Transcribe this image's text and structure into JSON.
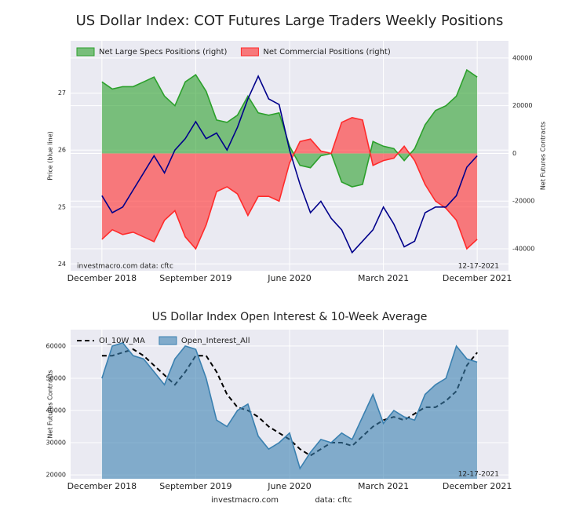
{
  "chart_data": [
    {
      "type": "line",
      "title": "US Dollar Index: COT Futures Large Traders Weekly Positions",
      "ylabel": "Price (blue line)",
      "y2label": "Net Futures Contracts",
      "x": [
        "2018-12",
        "2019-01",
        "2019-02",
        "2019-03",
        "2019-04",
        "2019-05",
        "2019-06",
        "2019-07",
        "2019-08",
        "2019-09",
        "2019-10",
        "2019-11",
        "2019-12",
        "2020-01",
        "2020-02",
        "2020-03",
        "2020-04",
        "2020-05",
        "2020-06",
        "2020-07",
        "2020-08",
        "2020-09",
        "2020-10",
        "2020-11",
        "2020-12",
        "2021-01",
        "2021-02",
        "2021-03",
        "2021-04",
        "2021-05",
        "2021-06",
        "2021-07",
        "2021-08",
        "2021-09",
        "2021-10",
        "2021-11",
        "2021-12"
      ],
      "xlim": [
        "2018-09",
        "2022-03"
      ],
      "xticks": [
        {
          "value": "2018-12",
          "label": "December 2018"
        },
        {
          "value": "2019-09",
          "label": "September 2019"
        },
        {
          "value": "2020-06",
          "label": "June 2020"
        },
        {
          "value": "2021-03",
          "label": "March 2021"
        },
        {
          "value": "2021-12",
          "label": "December 2021"
        }
      ],
      "ylim": [
        23.88,
        27.92
      ],
      "yticks": [
        24,
        25,
        26,
        27
      ],
      "y2lim": [
        -49200,
        47200
      ],
      "y2ticks": [
        -40000,
        -20000,
        0,
        20000,
        40000
      ],
      "grid": true,
      "legend": "upper left",
      "series": [
        {
          "name": "Net Large Specs Positions (right)",
          "color": "#2ca02c",
          "style": "area",
          "axis": "y2",
          "values": [
            30000,
            27000,
            28000,
            28000,
            30000,
            32000,
            24000,
            20000,
            30000,
            33000,
            26000,
            14000,
            13000,
            16000,
            24000,
            17000,
            16000,
            17000,
            3000,
            -5000,
            -6000,
            -1000,
            0,
            -12000,
            -14000,
            -13000,
            5000,
            3000,
            2000,
            -3000,
            2000,
            12000,
            18000,
            20000,
            24000,
            35000,
            32000
          ]
        },
        {
          "name": "Net Commercial Positions (right)",
          "color": "#ff2b2b",
          "style": "area",
          "axis": "y2",
          "values": [
            -36000,
            -32000,
            -34000,
            -33000,
            -35000,
            -37000,
            -28000,
            -24000,
            -35000,
            -40000,
            -30000,
            -16000,
            -14000,
            -17000,
            -26000,
            -18000,
            -18000,
            -20000,
            -4000,
            5000,
            6000,
            1000,
            0,
            13000,
            15000,
            14000,
            -5000,
            -3000,
            -2000,
            3000,
            -3000,
            -13000,
            -20000,
            -23000,
            -28000,
            -40000,
            -36000
          ]
        },
        {
          "color": "#00008b",
          "style": "line",
          "values": [
            25.2,
            24.9,
            25.0,
            25.3,
            25.6,
            25.9,
            25.6,
            26.0,
            26.2,
            26.5,
            26.2,
            26.3,
            26.0,
            26.4,
            26.9,
            27.3,
            26.9,
            26.8,
            26.0,
            25.4,
            24.9,
            25.1,
            24.8,
            24.6,
            24.2,
            24.4,
            24.6,
            25.0,
            24.7,
            24.3,
            24.4,
            24.9,
            25.0,
            25.0,
            25.2,
            25.7,
            25.9
          ]
        }
      ],
      "annotations": [
        "investmacro.com   data: cftc",
        "12-17-2021"
      ]
    },
    {
      "type": "line",
      "title": "US Dollar Index Open Interest & 10-Week Average",
      "ylabel": "Net Futures Contracts",
      "x": [
        "2018-12",
        "2019-01",
        "2019-02",
        "2019-03",
        "2019-04",
        "2019-05",
        "2019-06",
        "2019-07",
        "2019-08",
        "2019-09",
        "2019-10",
        "2019-11",
        "2019-12",
        "2020-01",
        "2020-02",
        "2020-03",
        "2020-04",
        "2020-05",
        "2020-06",
        "2020-07",
        "2020-08",
        "2020-09",
        "2020-10",
        "2020-11",
        "2020-12",
        "2021-01",
        "2021-02",
        "2021-03",
        "2021-04",
        "2021-05",
        "2021-06",
        "2021-07",
        "2021-08",
        "2021-09",
        "2021-10",
        "2021-11",
        "2021-12"
      ],
      "xlim": [
        "2018-09",
        "2022-03"
      ],
      "xticks": [
        {
          "value": "2018-12",
          "label": "December 2018"
        },
        {
          "value": "2019-09",
          "label": "September 2019"
        },
        {
          "value": "2020-06",
          "label": "June 2020"
        },
        {
          "value": "2021-03",
          "label": "March 2021"
        },
        {
          "value": "2021-12",
          "label": "December 2021"
        }
      ],
      "ylim": [
        18800,
        65100
      ],
      "yticks": [
        20000,
        30000,
        40000,
        50000,
        60000
      ],
      "grid": true,
      "legend": "upper left",
      "series": [
        {
          "name": "OI_10W_MA",
          "color": "#000000",
          "style": "dashed",
          "values": [
            57000,
            57000,
            58000,
            59000,
            57000,
            54000,
            51000,
            48000,
            52000,
            57000,
            57000,
            52000,
            45000,
            41000,
            40000,
            38000,
            35000,
            33000,
            31000,
            28000,
            26000,
            28000,
            30000,
            30000,
            29000,
            32000,
            35000,
            37000,
            38000,
            37000,
            39000,
            41000,
            41000,
            43000,
            46000,
            54000,
            58000
          ]
        },
        {
          "name": "Open_Interest_All",
          "color": "#3a80b0",
          "style": "area",
          "values": [
            50000,
            60000,
            61000,
            57000,
            56000,
            52000,
            48000,
            56000,
            60000,
            59000,
            50000,
            37000,
            35000,
            40000,
            42000,
            32000,
            28000,
            30000,
            33000,
            22000,
            27000,
            31000,
            30000,
            33000,
            31000,
            38000,
            45000,
            36000,
            40000,
            38000,
            37000,
            45000,
            48000,
            50000,
            60000,
            56000,
            55000
          ]
        }
      ],
      "annotations": [
        "12-17-2021"
      ]
    }
  ],
  "footer": [
    "investmacro.com",
    "data: cftc"
  ]
}
